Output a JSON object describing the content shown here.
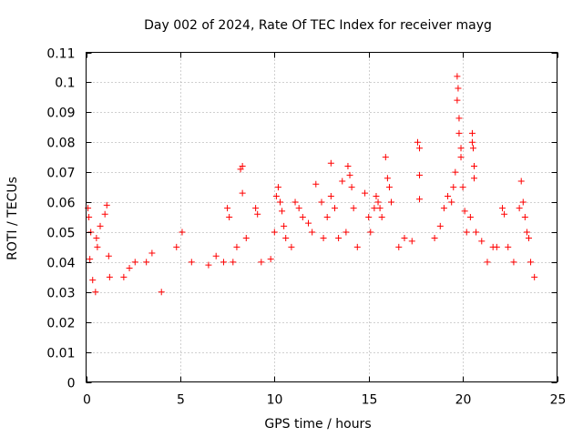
{
  "chart_data": {
    "type": "scatter",
    "title": "Day 002 of 2024, Rate Of TEC Index for receiver mayg",
    "xlabel": "GPS time / hours",
    "ylabel": "ROTI / TECUs",
    "xlim": [
      0,
      25
    ],
    "ylim": [
      0,
      0.11
    ],
    "x_ticks": [
      0,
      5,
      10,
      15,
      20,
      25
    ],
    "y_ticks": [
      0,
      0.01,
      0.02,
      0.03,
      0.04,
      0.05,
      0.06,
      0.07,
      0.08,
      0.09,
      0.1,
      0.11
    ],
    "x_tick_labels": [
      "0",
      "5",
      "10",
      "15",
      "20",
      "25"
    ],
    "y_tick_labels": [
      "0",
      "0.01",
      "0.02",
      "0.03",
      "0.04",
      "0.05",
      "0.06",
      "0.07",
      "0.08",
      "0.09",
      "0.1",
      "0.11"
    ],
    "grid": true,
    "marker": "+",
    "series": [
      {
        "name": "ROTI",
        "color": "#ff0000",
        "points": [
          [
            0.1,
            0.058
          ],
          [
            0.15,
            0.055
          ],
          [
            0.2,
            0.041
          ],
          [
            0.25,
            0.05
          ],
          [
            0.35,
            0.034
          ],
          [
            0.5,
            0.03
          ],
          [
            0.55,
            0.048
          ],
          [
            0.6,
            0.045
          ],
          [
            0.75,
            0.052
          ],
          [
            1.0,
            0.056
          ],
          [
            1.1,
            0.059
          ],
          [
            1.2,
            0.042
          ],
          [
            1.25,
            0.035
          ],
          [
            2.0,
            0.035
          ],
          [
            2.3,
            0.038
          ],
          [
            2.6,
            0.04
          ],
          [
            3.2,
            0.04
          ],
          [
            3.5,
            0.043
          ],
          [
            4.0,
            0.03
          ],
          [
            4.8,
            0.045
          ],
          [
            5.1,
            0.05
          ],
          [
            5.6,
            0.04
          ],
          [
            6.5,
            0.039
          ],
          [
            6.9,
            0.042
          ],
          [
            7.3,
            0.04
          ],
          [
            7.5,
            0.058
          ],
          [
            7.6,
            0.055
          ],
          [
            7.8,
            0.04
          ],
          [
            8.0,
            0.045
          ],
          [
            8.2,
            0.071
          ],
          [
            8.3,
            0.072
          ],
          [
            8.3,
            0.063
          ],
          [
            8.5,
            0.048
          ],
          [
            9.0,
            0.058
          ],
          [
            9.1,
            0.056
          ],
          [
            9.3,
            0.04
          ],
          [
            9.8,
            0.041
          ],
          [
            10.0,
            0.05
          ],
          [
            10.1,
            0.062
          ],
          [
            10.2,
            0.065
          ],
          [
            10.3,
            0.06
          ],
          [
            10.4,
            0.057
          ],
          [
            10.5,
            0.052
          ],
          [
            10.6,
            0.048
          ],
          [
            10.9,
            0.045
          ],
          [
            11.1,
            0.06
          ],
          [
            11.3,
            0.058
          ],
          [
            11.5,
            0.055
          ],
          [
            11.8,
            0.053
          ],
          [
            12.0,
            0.05
          ],
          [
            12.2,
            0.066
          ],
          [
            12.5,
            0.06
          ],
          [
            12.6,
            0.048
          ],
          [
            12.8,
            0.055
          ],
          [
            13.0,
            0.073
          ],
          [
            13.0,
            0.062
          ],
          [
            13.2,
            0.058
          ],
          [
            13.4,
            0.048
          ],
          [
            13.6,
            0.067
          ],
          [
            13.8,
            0.05
          ],
          [
            13.9,
            0.072
          ],
          [
            14.0,
            0.069
          ],
          [
            14.1,
            0.065
          ],
          [
            14.2,
            0.058
          ],
          [
            14.4,
            0.045
          ],
          [
            14.8,
            0.063
          ],
          [
            15.0,
            0.055
          ],
          [
            15.1,
            0.05
          ],
          [
            15.3,
            0.058
          ],
          [
            15.4,
            0.062
          ],
          [
            15.5,
            0.06
          ],
          [
            15.6,
            0.058
          ],
          [
            15.7,
            0.055
          ],
          [
            15.9,
            0.075
          ],
          [
            16.0,
            0.068
          ],
          [
            16.1,
            0.065
          ],
          [
            16.2,
            0.06
          ],
          [
            16.6,
            0.045
          ],
          [
            16.9,
            0.048
          ],
          [
            17.3,
            0.047
          ],
          [
            17.6,
            0.08
          ],
          [
            17.7,
            0.078
          ],
          [
            17.7,
            0.069
          ],
          [
            17.7,
            0.061
          ],
          [
            18.5,
            0.048
          ],
          [
            18.8,
            0.052
          ],
          [
            19.0,
            0.058
          ],
          [
            19.2,
            0.062
          ],
          [
            19.4,
            0.06
          ],
          [
            19.5,
            0.065
          ],
          [
            19.6,
            0.07
          ],
          [
            19.7,
            0.102
          ],
          [
            19.7,
            0.094
          ],
          [
            19.75,
            0.098
          ],
          [
            19.8,
            0.088
          ],
          [
            19.8,
            0.083
          ],
          [
            19.9,
            0.078
          ],
          [
            19.9,
            0.075
          ],
          [
            20.0,
            0.065
          ],
          [
            20.1,
            0.057
          ],
          [
            20.2,
            0.05
          ],
          [
            20.4,
            0.055
          ],
          [
            20.5,
            0.083
          ],
          [
            20.5,
            0.08
          ],
          [
            20.55,
            0.078
          ],
          [
            20.6,
            0.072
          ],
          [
            20.6,
            0.068
          ],
          [
            20.7,
            0.05
          ],
          [
            21.0,
            0.047
          ],
          [
            21.3,
            0.04
          ],
          [
            21.6,
            0.045
          ],
          [
            21.8,
            0.045
          ],
          [
            22.1,
            0.058
          ],
          [
            22.2,
            0.056
          ],
          [
            22.4,
            0.045
          ],
          [
            22.7,
            0.04
          ],
          [
            23.0,
            0.058
          ],
          [
            23.1,
            0.067
          ],
          [
            23.2,
            0.06
          ],
          [
            23.3,
            0.055
          ],
          [
            23.4,
            0.05
          ],
          [
            23.5,
            0.048
          ],
          [
            23.6,
            0.04
          ],
          [
            23.8,
            0.035
          ]
        ]
      }
    ]
  }
}
